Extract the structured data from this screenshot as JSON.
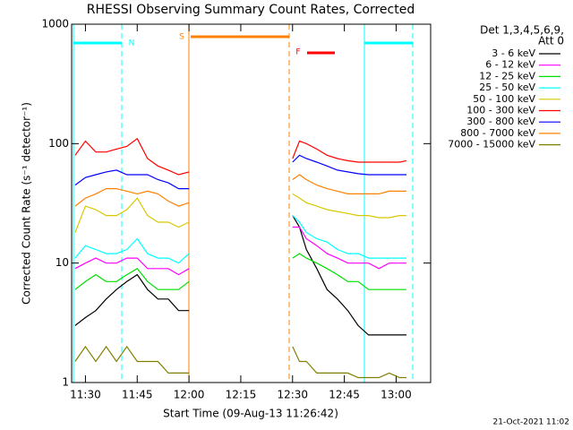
{
  "chart_data": {
    "type": "line",
    "title": "RHESSI Observing Summary Count Rates, Corrected",
    "y_label": "Corrected Count Rate (s⁻¹ detector⁻¹)",
    "x_label": "Start Time (09-Aug-13 11:26:42)",
    "legend_header": [
      "Det 1,3,4,5,6,9,",
      "Att 0"
    ],
    "footer": "21-Oct-2021 11:02",
    "annotations": [
      "N",
      "S",
      "F"
    ],
    "log_y": true,
    "ylim": [
      1,
      1000
    ],
    "yticks": [
      1,
      10,
      100,
      1000
    ],
    "xlim": [
      "11:26",
      "13:10"
    ],
    "xticks": [
      "11:30",
      "11:45",
      "12:00",
      "12:15",
      "12:30",
      "12:45",
      "13:00"
    ],
    "x": [
      "11:27",
      "11:30",
      "11:33",
      "11:36",
      "11:39",
      "11:42",
      "11:45",
      "11:48",
      "11:51",
      "11:54",
      "11:57",
      "12:00",
      "12:15",
      "12:30",
      "12:32",
      "12:34",
      "12:37",
      "12:40",
      "12:43",
      "12:46",
      "12:49",
      "12:52",
      "12:55",
      "12:58",
      "13:01",
      "13:03"
    ],
    "series": [
      {
        "name": "3 - 6 keV",
        "color": "#000000",
        "values": [
          3,
          3.5,
          4,
          5,
          6,
          7,
          8,
          6,
          5,
          5,
          4,
          4,
          null,
          25,
          20,
          13,
          9,
          6,
          5,
          4,
          3,
          2.5,
          2.5,
          2.5,
          2.5,
          2.5
        ]
      },
      {
        "name": "6 - 12 keV",
        "color": "#ff00ff",
        "values": [
          9,
          10,
          11,
          10,
          10,
          11,
          11,
          9,
          9,
          9,
          8,
          9,
          null,
          20,
          20,
          16,
          14,
          12,
          11,
          10,
          10,
          10,
          9,
          10,
          10,
          10
        ]
      },
      {
        "name": "12 - 25 keV",
        "color": "#00e000",
        "values": [
          6,
          7,
          8,
          7,
          7,
          8,
          9,
          7,
          6,
          6,
          6,
          7,
          null,
          11,
          12,
          11,
          10,
          9,
          8,
          7,
          7,
          6,
          6,
          6,
          6,
          6
        ]
      },
      {
        "name": "25 - 50 keV",
        "color": "#00ffff",
        "values": [
          11,
          14,
          13,
          12,
          12,
          13,
          16,
          12,
          11,
          11,
          10,
          12,
          null,
          25,
          22,
          18,
          16,
          15,
          13,
          12,
          12,
          11,
          11,
          11,
          11,
          11
        ]
      },
      {
        "name": "50 - 100 keV",
        "color": "#d8c800",
        "values": [
          18,
          30,
          28,
          25,
          25,
          28,
          35,
          25,
          22,
          22,
          20,
          22,
          null,
          38,
          35,
          32,
          30,
          28,
          27,
          26,
          25,
          25,
          24,
          24,
          25,
          25
        ]
      },
      {
        "name": "100 - 300 keV",
        "color": "#ff0000",
        "values": [
          80,
          105,
          85,
          85,
          90,
          95,
          110,
          75,
          65,
          60,
          55,
          58,
          null,
          75,
          105,
          100,
          90,
          80,
          75,
          72,
          70,
          70,
          70,
          70,
          70,
          72
        ]
      },
      {
        "name": "300 - 800 keV",
        "color": "#0000ff",
        "values": [
          45,
          52,
          55,
          58,
          60,
          55,
          55,
          55,
          50,
          47,
          42,
          42,
          null,
          70,
          80,
          75,
          70,
          65,
          60,
          58,
          56,
          55,
          55,
          55,
          55,
          55
        ]
      },
      {
        "name": "800 - 7000 keV",
        "color": "#ff8000",
        "values": [
          30,
          35,
          38,
          42,
          42,
          40,
          38,
          40,
          38,
          33,
          30,
          32,
          null,
          50,
          55,
          50,
          45,
          42,
          40,
          38,
          38,
          38,
          38,
          40,
          40,
          40
        ]
      },
      {
        "name": "7000 - 15000 keV",
        "color": "#808000",
        "values": [
          1.5,
          2,
          1.5,
          2,
          1.5,
          2,
          1.5,
          1.5,
          1.5,
          1.2,
          1.2,
          1.2,
          null,
          2,
          1.5,
          1.5,
          1.2,
          1.2,
          1.2,
          1.2,
          1.1,
          1.1,
          1.1,
          1.2,
          1.1,
          1.1
        ]
      }
    ]
  }
}
